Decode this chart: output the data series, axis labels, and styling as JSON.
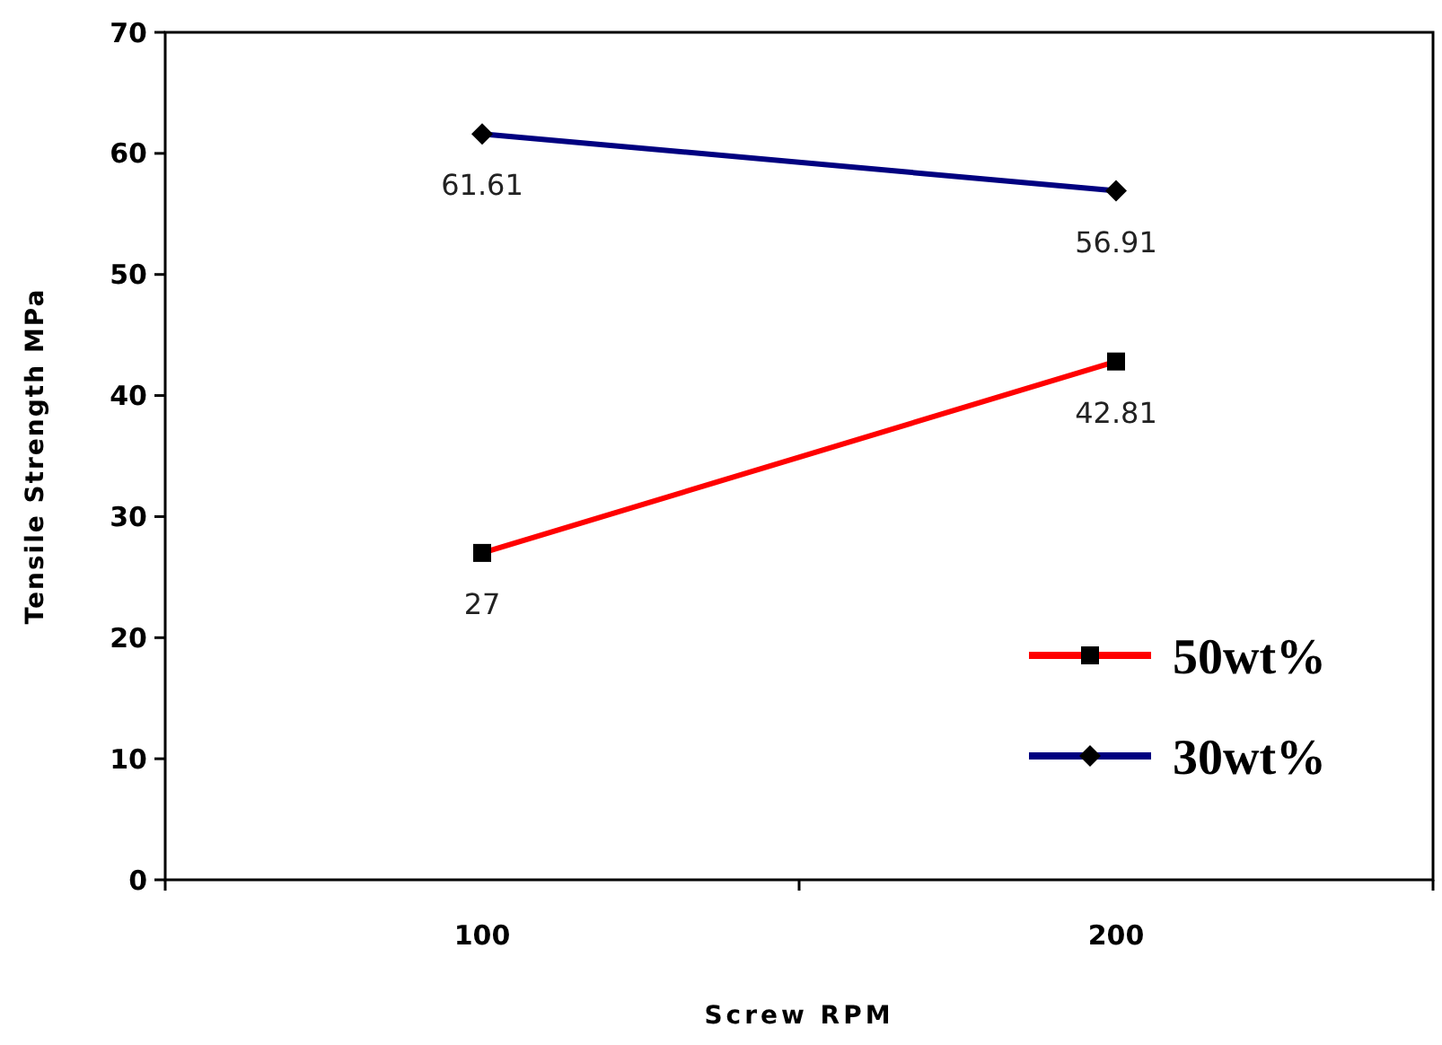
{
  "chart_data": {
    "type": "line",
    "xlabel": "Screw RPM",
    "ylabel": "Tensile Strength MPa",
    "categories": [
      "100",
      "200"
    ],
    "series": [
      {
        "name": "50wt%",
        "color": "#ff0000",
        "values": [
          27,
          42.81
        ],
        "marker": "square"
      },
      {
        "name": "30wt%",
        "color": "#000080",
        "values": [
          61.61,
          56.91
        ],
        "marker": "diamond"
      }
    ],
    "ylim": [
      0,
      70
    ],
    "yticks": [
      0,
      10,
      20,
      30,
      40,
      50,
      60,
      70
    ],
    "data_labels": true,
    "legend": "bottom right",
    "grid": false
  }
}
